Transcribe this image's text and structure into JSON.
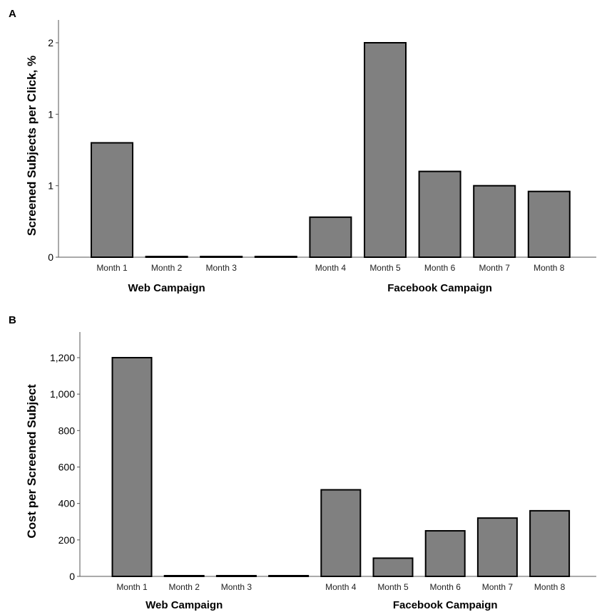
{
  "chart_data": [
    {
      "type": "bar",
      "panel": "A",
      "ylabel": "Screened Subjects per Click, %",
      "yticks": [
        {
          "value": 0,
          "label": "0"
        },
        {
          "value": 0.5,
          "label": "1"
        },
        {
          "value": 1,
          "label": "1"
        },
        {
          "value": 1.5,
          "label": "2"
        }
      ],
      "ylim": [
        0,
        1.68
      ],
      "categories": [
        "Month 1",
        "Month 2",
        "Month 3",
        "",
        "Month 4",
        "Month 5",
        "Month 6",
        "Month 7",
        "Month 8"
      ],
      "values": [
        0.8,
        0,
        0,
        0,
        0.28,
        1.5,
        0.6,
        0.5,
        0.46
      ],
      "groups": [
        {
          "label": "Web Campaign",
          "from": 0,
          "to": 2
        },
        {
          "label": "Facebook Campaign",
          "from": 4,
          "to": 8
        }
      ],
      "bar_color": "#808080"
    },
    {
      "type": "bar",
      "panel": "B",
      "ylabel": "Cost per Screened Subject",
      "yticks": [
        {
          "value": 0,
          "label": "0"
        },
        {
          "value": 200,
          "label": "200"
        },
        {
          "value": 400,
          "label": "400"
        },
        {
          "value": 600,
          "label": "600"
        },
        {
          "value": 800,
          "label": "800"
        },
        {
          "value": 1000,
          "label": "1,000"
        },
        {
          "value": 1200,
          "label": "1,200"
        }
      ],
      "ylim": [
        0,
        1335
      ],
      "categories": [
        "Month 1",
        "Month 2",
        "Month 3",
        "",
        "Month 4",
        "Month 5",
        "Month 6",
        "Month 7",
        "Month 8"
      ],
      "values": [
        1200,
        0,
        0,
        0,
        475,
        100,
        250,
        320,
        360
      ],
      "groups": [
        {
          "label": "Web Campaign",
          "from": 0,
          "to": 2
        },
        {
          "label": "Facebook Campaign",
          "from": 4,
          "to": 8
        }
      ],
      "bar_color": "#808080"
    }
  ]
}
